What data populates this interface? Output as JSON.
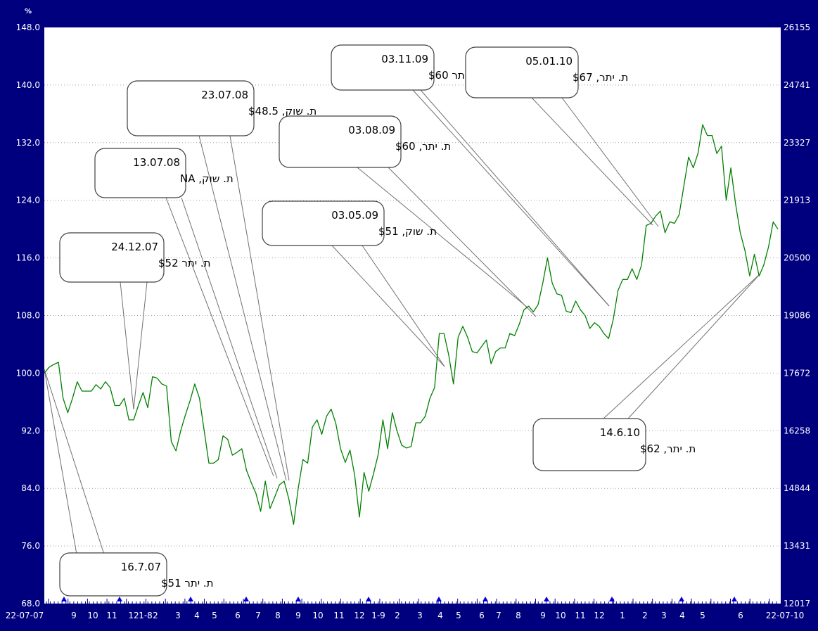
{
  "chart_data": {
    "type": "line",
    "left_axis_unit": "%",
    "ylim_left": [
      68.0,
      148.0
    ],
    "ylim_right": [
      12017,
      26155
    ],
    "y_ticks_left": [
      "148.0",
      "140.0",
      "132.0",
      "124.0",
      "116.0",
      "108.0",
      "100.0",
      "92.0",
      "84.0",
      "76.0",
      "68.0"
    ],
    "y_ticks_right": [
      "26155",
      "24741",
      "23327",
      "21913",
      "20500",
      "19086",
      "17672",
      "16258",
      "14844",
      "13431",
      "12017"
    ],
    "x_tick_labels": [
      "22-07-07",
      "9",
      "10",
      "11",
      "12",
      "1-8",
      "2",
      "3",
      "4",
      "5",
      "6",
      "7",
      "8",
      "9",
      "10",
      "11",
      "12",
      "1-9",
      "2",
      "3",
      "4",
      "5",
      "6",
      "7",
      "8",
      "9",
      "10",
      "11",
      "12",
      "1",
      "2",
      "3",
      "4",
      "5",
      "6",
      "22-07-10"
    ],
    "grid": true,
    "line_color": "#008000",
    "series": [
      {
        "points": [
          [
            0,
            100.0
          ],
          [
            1,
            100.8
          ],
          [
            2,
            101.2
          ],
          [
            3,
            101.5
          ],
          [
            4,
            96.5
          ],
          [
            5,
            94.5
          ],
          [
            6,
            96.5
          ],
          [
            7,
            98.8
          ],
          [
            8,
            97.5
          ],
          [
            9,
            97.5
          ],
          [
            10,
            97.5
          ],
          [
            11,
            98.4
          ],
          [
            12,
            97.8
          ],
          [
            13,
            98.8
          ],
          [
            14,
            98.0
          ],
          [
            15,
            95.5
          ],
          [
            16,
            95.5
          ],
          [
            17,
            96.5
          ],
          [
            18,
            93.5
          ],
          [
            19,
            93.5
          ],
          [
            20,
            95.5
          ],
          [
            21,
            97.3
          ],
          [
            22,
            95.2
          ],
          [
            23,
            99.5
          ],
          [
            24,
            99.3
          ],
          [
            25,
            98.5
          ],
          [
            26,
            98.2
          ],
          [
            27,
            90.5
          ],
          [
            28,
            89.2
          ],
          [
            29,
            92.0
          ],
          [
            30,
            94.2
          ],
          [
            31,
            96.2
          ],
          [
            32,
            98.5
          ],
          [
            33,
            96.5
          ],
          [
            34,
            92.0
          ],
          [
            35,
            87.5
          ],
          [
            36,
            87.5
          ],
          [
            37,
            88.0
          ],
          [
            38,
            91.3
          ],
          [
            39,
            90.8
          ],
          [
            40,
            88.6
          ],
          [
            41,
            89.0
          ],
          [
            42,
            89.5
          ],
          [
            43,
            86.5
          ],
          [
            44,
            84.8
          ],
          [
            45,
            83.3
          ],
          [
            46,
            80.8
          ],
          [
            47,
            85.0
          ],
          [
            48,
            81.2
          ],
          [
            49,
            82.8
          ],
          [
            50,
            84.5
          ],
          [
            51,
            85.0
          ],
          [
            52,
            82.5
          ],
          [
            53,
            79.0
          ],
          [
            54,
            84.0
          ],
          [
            55,
            88.0
          ],
          [
            56,
            87.5
          ],
          [
            57,
            92.5
          ],
          [
            58,
            93.5
          ],
          [
            59,
            91.5
          ],
          [
            60,
            94.0
          ],
          [
            61,
            95.0
          ],
          [
            62,
            93.0
          ],
          [
            63,
            89.5
          ],
          [
            64,
            87.6
          ],
          [
            65,
            89.3
          ],
          [
            66,
            85.8
          ],
          [
            67,
            80.0
          ],
          [
            68,
            86.2
          ],
          [
            69,
            83.6
          ],
          [
            70,
            86.0
          ],
          [
            71,
            88.7
          ],
          [
            72,
            93.5
          ],
          [
            73,
            89.5
          ],
          [
            74,
            94.5
          ],
          [
            75,
            92.0
          ],
          [
            76,
            90.0
          ],
          [
            77,
            89.6
          ],
          [
            78,
            89.8
          ],
          [
            79,
            93.1
          ],
          [
            80,
            93.1
          ],
          [
            81,
            94.0
          ],
          [
            82,
            96.5
          ],
          [
            83,
            98.0
          ],
          [
            84,
            105.5
          ],
          [
            85,
            105.5
          ],
          [
            86,
            102.5
          ],
          [
            87,
            98.5
          ],
          [
            88,
            105.0
          ],
          [
            89,
            106.5
          ],
          [
            90,
            105.0
          ],
          [
            91,
            103.0
          ],
          [
            92,
            102.8
          ],
          [
            93,
            103.7
          ],
          [
            94,
            104.6
          ],
          [
            95,
            101.3
          ],
          [
            96,
            103.0
          ],
          [
            97,
            103.5
          ],
          [
            98,
            103.5
          ],
          [
            99,
            105.5
          ],
          [
            100,
            105.2
          ],
          [
            101,
            106.8
          ],
          [
            102,
            108.8
          ],
          [
            103,
            109.3
          ],
          [
            104,
            108.5
          ],
          [
            105,
            109.5
          ],
          [
            106,
            112.5
          ],
          [
            107,
            116.0
          ],
          [
            108,
            112.5
          ],
          [
            109,
            111.0
          ],
          [
            110,
            110.8
          ],
          [
            111,
            108.6
          ],
          [
            112,
            108.4
          ],
          [
            113,
            110.0
          ],
          [
            114,
            108.8
          ],
          [
            115,
            108.0
          ],
          [
            116,
            106.2
          ],
          [
            117,
            107.0
          ],
          [
            118,
            106.5
          ],
          [
            119,
            105.5
          ],
          [
            120,
            104.8
          ],
          [
            121,
            107.5
          ],
          [
            122,
            111.5
          ],
          [
            123,
            113.0
          ],
          [
            124,
            113.0
          ],
          [
            125,
            114.5
          ],
          [
            126,
            113.0
          ],
          [
            127,
            115.0
          ],
          [
            128,
            120.5
          ],
          [
            129,
            120.8
          ],
          [
            130,
            121.8
          ],
          [
            131,
            122.5
          ],
          [
            132,
            119.5
          ],
          [
            133,
            121.0
          ],
          [
            134,
            120.8
          ],
          [
            135,
            122.0
          ],
          [
            136,
            126.0
          ],
          [
            137,
            130.0
          ],
          [
            138,
            128.5
          ],
          [
            139,
            130.5
          ],
          [
            140,
            134.5
          ],
          [
            141,
            133.0
          ],
          [
            142,
            133.0
          ],
          [
            143,
            130.5
          ],
          [
            144,
            131.5
          ],
          [
            145,
            124.0
          ],
          [
            146,
            128.5
          ],
          [
            147,
            123.5
          ],
          [
            148,
            119.5
          ],
          [
            149,
            117.0
          ],
          [
            150,
            113.5
          ],
          [
            151,
            116.5
          ],
          [
            152,
            113.5
          ],
          [
            153,
            115.0
          ],
          [
            154,
            117.5
          ],
          [
            155,
            121.0
          ],
          [
            156,
            120.0
          ]
        ]
      }
    ],
    "markers": [
      "16.7.07",
      "24.12.07",
      "13.07.08",
      "23.07.08",
      "03.05.09",
      "03.08.09",
      "03.11.09",
      "05.01.10",
      "14.6.10"
    ],
    "annotations": [
      {
        "line1": "16.7.07",
        "line2": "ת. יתר $51"
      },
      {
        "line1": "24.12.07",
        "line2": "ת. יתר $52"
      },
      {
        "line1": "13.07.08",
        "line2": "ת. שוק, NA"
      },
      {
        "line1": "23.07.08",
        "line2": "ת. שוק, $48.5"
      },
      {
        "line1": "03.05.09",
        "line2": "ת. שוק, $51"
      },
      {
        "line1": "03.08.09",
        "line2": "ת. יתר, $60"
      },
      {
        "line1": "03.11.09",
        "line2": "ת. יתר $60"
      },
      {
        "line1": "05.01.10",
        "line2": "ת. יתר, $67"
      },
      {
        "line1": "14.6.10",
        "line2": "ת. יתר, $62"
      }
    ]
  }
}
